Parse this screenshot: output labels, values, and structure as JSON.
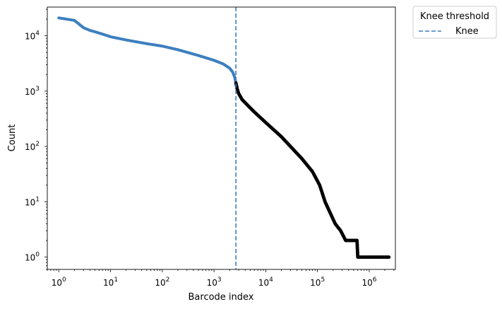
{
  "chart_data": {
    "type": "scatter",
    "title": "",
    "xlabel": "Barcode index",
    "ylabel": "Count",
    "xscale": "log",
    "yscale": "log",
    "xlim": [
      0.6,
      3200000
    ],
    "ylim": [
      0.6,
      33000
    ],
    "grid": false,
    "x_ticks": [
      {
        "value": 1,
        "base": "10",
        "exp": "0"
      },
      {
        "value": 10,
        "base": "10",
        "exp": "1"
      },
      {
        "value": 100,
        "base": "10",
        "exp": "2"
      },
      {
        "value": 1000,
        "base": "10",
        "exp": "3"
      },
      {
        "value": 10000,
        "base": "10",
        "exp": "4"
      },
      {
        "value": 100000,
        "base": "10",
        "exp": "5"
      },
      {
        "value": 1000000,
        "base": "10",
        "exp": "6"
      }
    ],
    "y_ticks": [
      {
        "value": 1,
        "base": "10",
        "exp": "0"
      },
      {
        "value": 10,
        "base": "10",
        "exp": "1"
      },
      {
        "value": 100,
        "base": "10",
        "exp": "2"
      },
      {
        "value": 1000,
        "base": "10",
        "exp": "3"
      },
      {
        "value": 10000,
        "base": "10",
        "exp": "4"
      }
    ],
    "series": [
      {
        "color": "#3d7fbf",
        "points": [
          [
            1,
            21000
          ],
          [
            2,
            19000
          ],
          [
            3,
            14000
          ],
          [
            4,
            12500
          ],
          [
            5,
            11800
          ],
          [
            6,
            11200
          ],
          [
            7,
            10700
          ],
          [
            8,
            10300
          ],
          [
            10,
            9600
          ],
          [
            20,
            8400
          ],
          [
            50,
            7200
          ],
          [
            100,
            6500
          ],
          [
            200,
            5600
          ],
          [
            500,
            4400
          ],
          [
            1000,
            3600
          ],
          [
            1500,
            3100
          ],
          [
            2000,
            2600
          ],
          [
            2300,
            2200
          ],
          [
            2500,
            1800
          ],
          [
            2650,
            1400
          ]
        ]
      },
      {
        "color": "#000000",
        "points": [
          [
            2650,
            1400
          ],
          [
            2800,
            1100
          ],
          [
            3000,
            900
          ],
          [
            3500,
            700
          ],
          [
            4500,
            550
          ],
          [
            6000,
            420
          ],
          [
            10000,
            270
          ],
          [
            20000,
            150
          ],
          [
            50000,
            60
          ],
          [
            80000,
            35
          ],
          [
            110000,
            20
          ],
          [
            140000,
            10
          ],
          [
            180000,
            6
          ],
          [
            220000,
            4
          ],
          [
            280000,
            3
          ],
          [
            350000,
            2
          ],
          [
            580000,
            2
          ],
          [
            600000,
            1
          ],
          [
            2400000,
            1
          ]
        ]
      }
    ],
    "reference_lines": [
      {
        "orientation": "vertical",
        "x": 2650,
        "color": "#3d7fbf",
        "style": "dashed",
        "legend_label": "Knee"
      }
    ],
    "legend": {
      "title": "Knee threshold",
      "entries": [
        "Knee"
      ],
      "placement": "outside-top-right"
    }
  }
}
